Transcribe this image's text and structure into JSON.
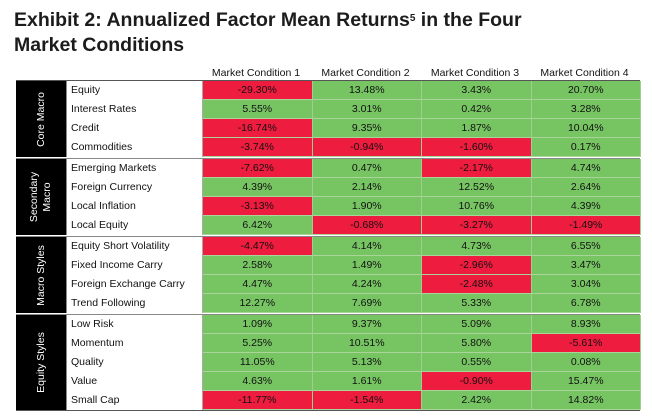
{
  "title": {
    "line1_a": "Exhibit 2: Annualized Factor Mean Returns",
    "footnote": "5",
    "line1_b": " in the Four",
    "line2": "Market Conditions"
  },
  "colors": {
    "positive": "#77c463",
    "negative": "#ee1c3e",
    "band": "#000000"
  },
  "chart_data": {
    "type": "table",
    "columns": [
      "Market Condition 1",
      "Market Condition 2",
      "Market Condition 3",
      "Market Condition 4"
    ],
    "groups": [
      {
        "name": "Core Macro",
        "rows": [
          {
            "label": "Equity",
            "values": [
              "-29.30%",
              "13.48%",
              "3.43%",
              "20.70%"
            ]
          },
          {
            "label": "Interest Rates",
            "values": [
              "5.55%",
              "3.01%",
              "0.42%",
              "3.28%"
            ]
          },
          {
            "label": "Credit",
            "values": [
              "-16.74%",
              "9.35%",
              "1.87%",
              "10.04%"
            ]
          },
          {
            "label": "Commodities",
            "values": [
              "-3.74%",
              "-0.94%",
              "-1.60%",
              "0.17%"
            ]
          }
        ]
      },
      {
        "name": "Secondary\nMacro",
        "rows": [
          {
            "label": "Emerging Markets",
            "values": [
              "-7.62%",
              "0.47%",
              "-2.17%",
              "4.74%"
            ]
          },
          {
            "label": "Foreign Currency",
            "values": [
              "4.39%",
              "2.14%",
              "12.52%",
              "2.64%"
            ]
          },
          {
            "label": "Local Inflation",
            "values": [
              "-3.13%",
              "1.90%",
              "10.76%",
              "4.39%"
            ]
          },
          {
            "label": "Local Equity",
            "values": [
              "6.42%",
              "-0.68%",
              "-3.27%",
              "-1.49%"
            ]
          }
        ]
      },
      {
        "name": "Macro Styles",
        "rows": [
          {
            "label": "Equity Short Volatility",
            "values": [
              "-4.47%",
              "4.14%",
              "4.73%",
              "6.55%"
            ]
          },
          {
            "label": "Fixed Income Carry",
            "values": [
              "2.58%",
              "1.49%",
              "-2.96%",
              "3.47%"
            ]
          },
          {
            "label": "Foreign Exchange Carry",
            "values": [
              "4.47%",
              "4.24%",
              "-2.48%",
              "3.04%"
            ]
          },
          {
            "label": "Trend Following",
            "values": [
              "12.27%",
              "7.69%",
              "5.33%",
              "6.78%"
            ]
          }
        ]
      },
      {
        "name": "Equity Styles",
        "rows": [
          {
            "label": "Low Risk",
            "values": [
              "1.09%",
              "9.37%",
              "5.09%",
              "8.93%"
            ]
          },
          {
            "label": "Momentum",
            "values": [
              "5.25%",
              "10.51%",
              "5.80%",
              "-5.61%"
            ]
          },
          {
            "label": "Quality",
            "values": [
              "11.05%",
              "5.13%",
              "0.55%",
              "0.08%"
            ]
          },
          {
            "label": "Value",
            "values": [
              "4.63%",
              "1.61%",
              "-0.90%",
              "15.47%"
            ]
          },
          {
            "label": "Small Cap",
            "values": [
              "-11.77%",
              "-1.54%",
              "2.42%",
              "14.82%"
            ]
          }
        ]
      }
    ]
  }
}
